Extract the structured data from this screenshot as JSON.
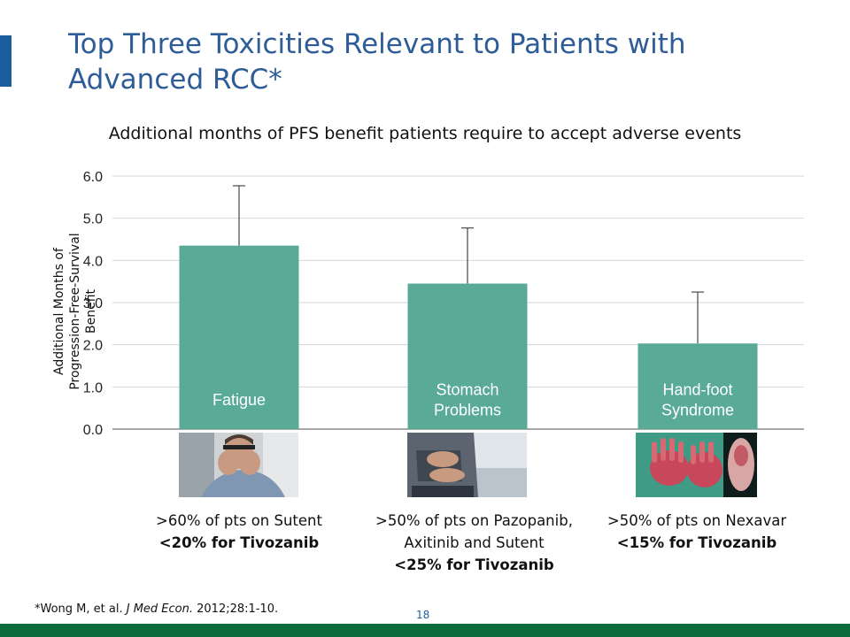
{
  "slide": {
    "title": "Top Three Toxicities Relevant to Patients with Advanced RCC*",
    "page_number": "18",
    "footnote": {
      "prefix": "*Wong M, et al. ",
      "journal": "J Med Econ.",
      "suffix": " 2012;28:1-10."
    },
    "colors": {
      "accent": "#1b5e9e",
      "bar": "#5aaa98",
      "bottom_bar": "#0c6b3d"
    }
  },
  "chart_data": {
    "type": "bar",
    "title": "Additional months of PFS benefit patients require to accept adverse events",
    "ylabel_lines": [
      "Additional Months of",
      "Progression-Free-Survival Benefit"
    ],
    "categories": [
      "Fatigue",
      "Stomach Problems",
      "Hand-foot Syndrome"
    ],
    "category_label_lines": [
      [
        "Fatigue"
      ],
      [
        "Stomach",
        "Problems"
      ],
      [
        "Hand-foot",
        "Syndrome"
      ]
    ],
    "values": [
      4.35,
      3.45,
      2.03
    ],
    "error_upper": [
      5.77,
      4.77,
      3.25
    ],
    "ylim": [
      0,
      6
    ],
    "yticks": [
      0,
      1,
      2,
      3,
      4,
      5,
      6
    ],
    "ytick_labels": [
      "0.0",
      "1.0",
      "2.0",
      "3.0",
      "4.0",
      "5.0",
      "6.0"
    ],
    "grid": true
  },
  "captions": [
    {
      "normal": [
        ">60% of pts on Sutent"
      ],
      "bold": "<20% for Tivozanib"
    },
    {
      "normal": [
        ">50% of pts on Pazopanib,",
        "Axitinib and Sutent"
      ],
      "bold": "<25% for Tivozanib"
    },
    {
      "normal": [
        ">50% of pts on Nexavar"
      ],
      "bold": "<15% for Tivozanib"
    }
  ]
}
